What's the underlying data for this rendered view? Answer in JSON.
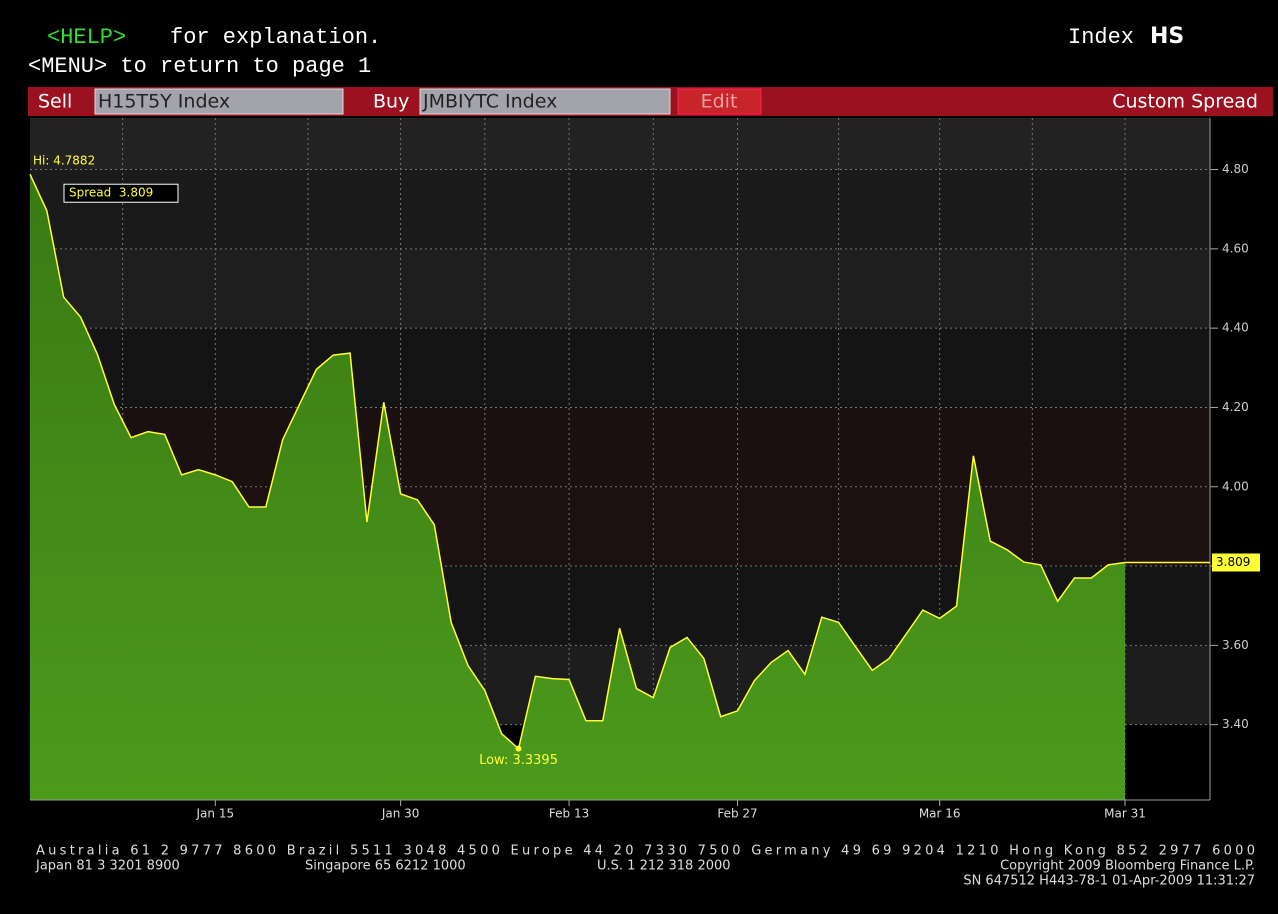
{
  "header": {
    "help_key": "<HELP>",
    "help_text": "for explanation.",
    "menu_text": "<MENU> to return to page 1",
    "index_label": "Index",
    "index_code": "HS"
  },
  "toolbar": {
    "sell_label": "Sell",
    "sell_value": "H15T5Y Index",
    "buy_label": "Buy",
    "buy_value": "JMBIYTC Index",
    "edit": "Edit",
    "title": "Custom Spread"
  },
  "footer": {
    "line1": "Australia 61 2 9777 8600 Brazil 5511 3048 4500 Europe 44 20 7330 7500 Germany 49 69 9204 1210 Hong Kong 852 2977 6000",
    "japan": "Japan 81 3 3201 8900",
    "singapore": "Singapore 65 6212 1000",
    "us": "U.S. 1 212 318 2000",
    "copyright": "Copyright 2009 Bloomberg Finance L.P.",
    "serial": "SN 647512 H443-78-1 01-Apr-2009 11:31:27"
  },
  "chart_data": {
    "type": "area",
    "hi_label": "Hi: 4.7882",
    "low_label": "Low: 3.3395",
    "spread_label": "Spread  3.809",
    "last_label": "3.809",
    "categories": [
      null,
      null,
      null,
      null,
      null,
      null,
      null,
      null,
      null,
      null,
      null,
      "Jan 15",
      null,
      null,
      null,
      null,
      null,
      null,
      null,
      null,
      null,
      null,
      "Jan 30",
      null,
      null,
      null,
      null,
      null,
      null,
      null,
      null,
      null,
      "Feb 13",
      null,
      null,
      null,
      null,
      null,
      null,
      null,
      null,
      null,
      "Feb 27",
      null,
      null,
      null,
      null,
      null,
      null,
      null,
      null,
      null,
      null,
      null,
      "Mar 16",
      null,
      null,
      null,
      null,
      null,
      null,
      null,
      null,
      null,
      null,
      "Mar 31"
    ],
    "series": [
      {
        "name": "Spread",
        "color": "#ffff33",
        "fill": "#3a7a14",
        "values": [
          4.7882,
          4.696,
          4.478,
          4.428,
          4.334,
          4.208,
          4.124,
          4.139,
          4.132,
          4.03,
          4.043,
          4.03,
          4.013,
          3.949,
          3.949,
          4.119,
          4.208,
          4.296,
          4.332,
          4.337,
          3.911,
          4.213,
          3.982,
          3.967,
          3.904,
          3.658,
          3.549,
          3.486,
          3.377,
          3.3395,
          3.522,
          3.516,
          3.514,
          3.41,
          3.41,
          3.643,
          3.491,
          3.468,
          3.595,
          3.62,
          3.567,
          3.42,
          3.435,
          3.511,
          3.557,
          3.587,
          3.527,
          3.671,
          3.658,
          3.597,
          3.537,
          3.567,
          3.628,
          3.689,
          3.668,
          3.699,
          4.078,
          3.863,
          3.841,
          3.81,
          3.803,
          3.711,
          3.77,
          3.77,
          3.803,
          3.809
        ]
      }
    ],
    "ylim": [
      3.21,
      4.93
    ],
    "yticks": [
      {
        "value": 3.4,
        "label": "3.40"
      },
      {
        "value": 3.6,
        "label": "3.60"
      },
      {
        "value": 3.8,
        "label": "3.80"
      },
      {
        "value": 4.0,
        "label": "4.00"
      },
      {
        "value": 4.2,
        "label": "4.20"
      },
      {
        "value": 4.4,
        "label": "4.40"
      },
      {
        "value": 4.6,
        "label": "4.60"
      },
      {
        "value": 4.8,
        "label": "4.80"
      }
    ],
    "grid": true
  }
}
